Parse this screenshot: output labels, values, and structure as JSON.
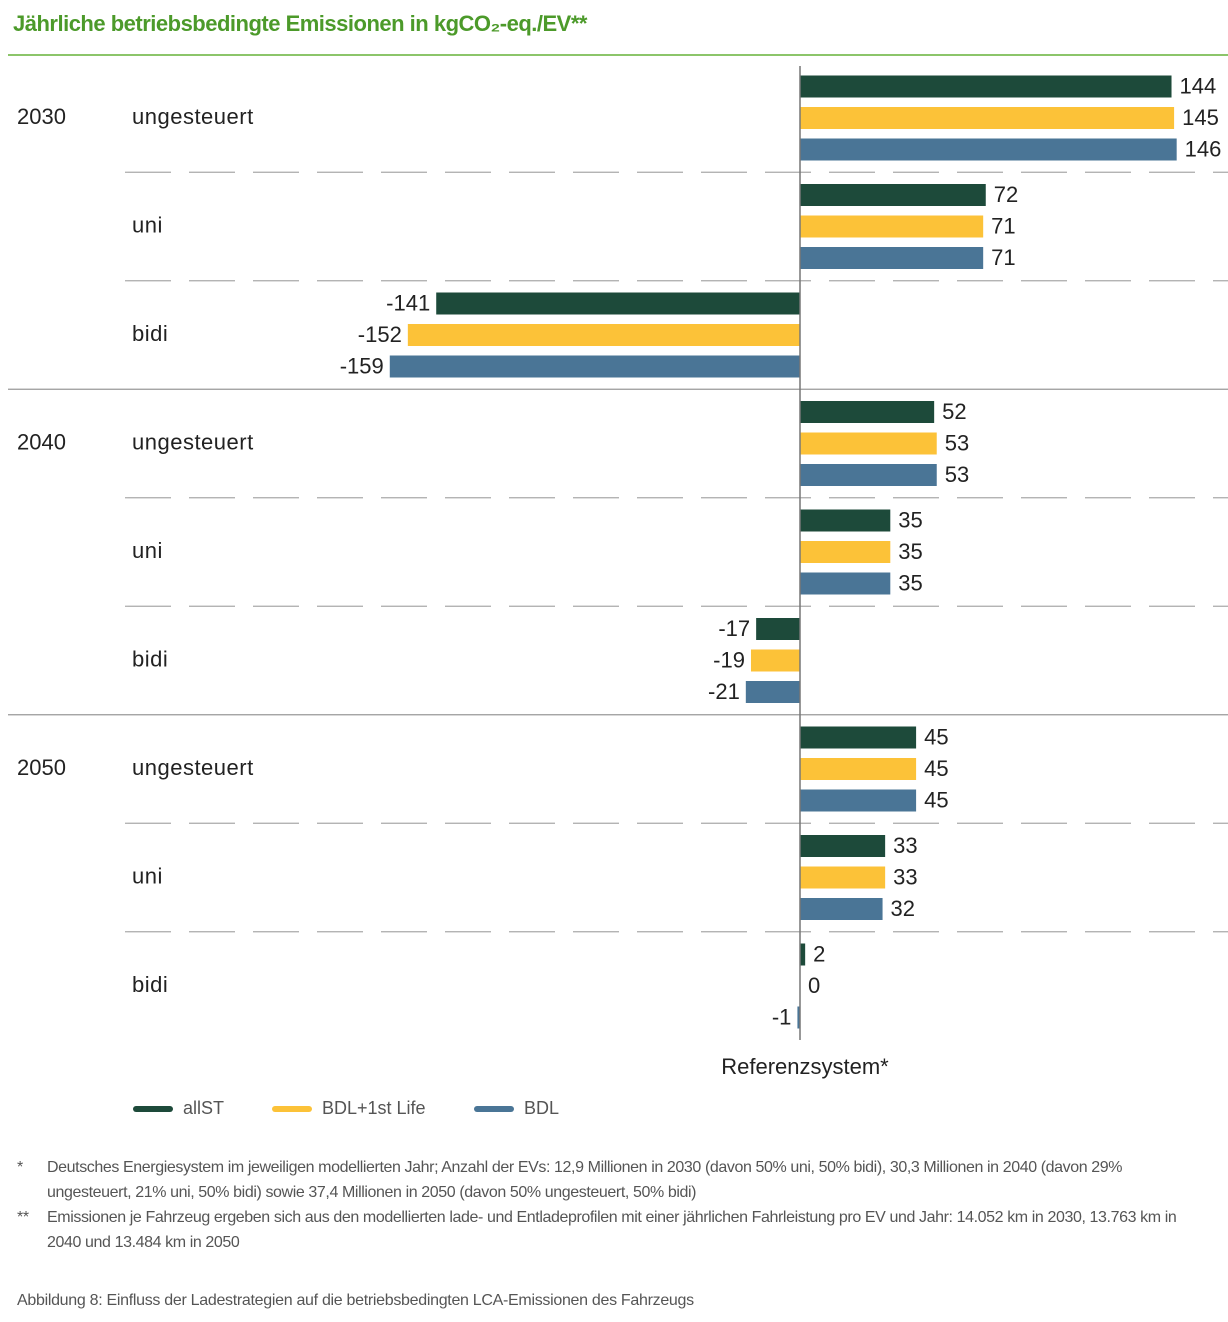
{
  "chart_data": {
    "type": "bar",
    "orientation": "horizontal",
    "title": "Jährliche betriebsbedingte Emissionen in kgCO₂-eq./EV**",
    "years": [
      "2030",
      "2040",
      "2050"
    ],
    "categories": [
      "ungesteuert",
      "uni",
      "bidi",
      "ungesteuert",
      "uni",
      "bidi",
      "ungesteuert",
      "uni",
      "bidi"
    ],
    "series": [
      {
        "name": "allST",
        "color": "#1d4a3a",
        "values": [
          144,
          72,
          -141,
          52,
          35,
          -17,
          45,
          33,
          2
        ]
      },
      {
        "name": "BDL+1st Life",
        "color": "#fcc238",
        "values": [
          145,
          71,
          -152,
          53,
          35,
          -19,
          45,
          33,
          0
        ]
      },
      {
        "name": "BDL",
        "color": "#4a7596",
        "values": [
          146,
          71,
          -159,
          53,
          35,
          -21,
          45,
          32,
          -1
        ]
      }
    ],
    "reference_label": "Referenzsystem*",
    "footnotes": [
      {
        "marker": "*",
        "text": "Deutsches Energiesystem im jeweiligen modellierten Jahr; Anzahl der EVs: 12,9 Millionen in 2030 (davon 50% uni, 50% bidi), 30,3 Millionen in 2040 (davon 29% ungesteuert, 21% uni, 50% bidi) sowie 37,4 Millionen in 2050 (davon 50% ungesteuert, 50% bidi)"
      },
      {
        "marker": "**",
        "text": "Emissionen je Fahrzeug ergeben sich aus den modellierten lade- und Entladeprofilen mit einer jährlichen Fahrleistung pro EV und Jahr: 14.052 km in 2030, 13.763 km in 2040 und 13.484 km in 2050"
      }
    ],
    "caption": "Abbildung 8: Einfluss der Ladestrategien auf die betriebsbedingten LCA-Emissionen des Fahrzeugs"
  }
}
